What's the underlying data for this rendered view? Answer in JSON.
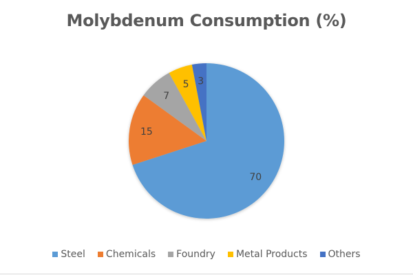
{
  "chart_data": {
    "type": "pie",
    "title": "Molybdenum Consumption (%)",
    "categories": [
      "Steel",
      "Chemicals",
      "Foundry",
      "Metal Products",
      "Others"
    ],
    "values": [
      70,
      15,
      7,
      5,
      3
    ],
    "colors": [
      "#5b9bd5",
      "#ed7d31",
      "#a5a5a5",
      "#ffc000",
      "#4472c4"
    ],
    "data_labels": [
      "70",
      "15",
      "7",
      "5",
      "3"
    ],
    "legend_position": "bottom"
  }
}
